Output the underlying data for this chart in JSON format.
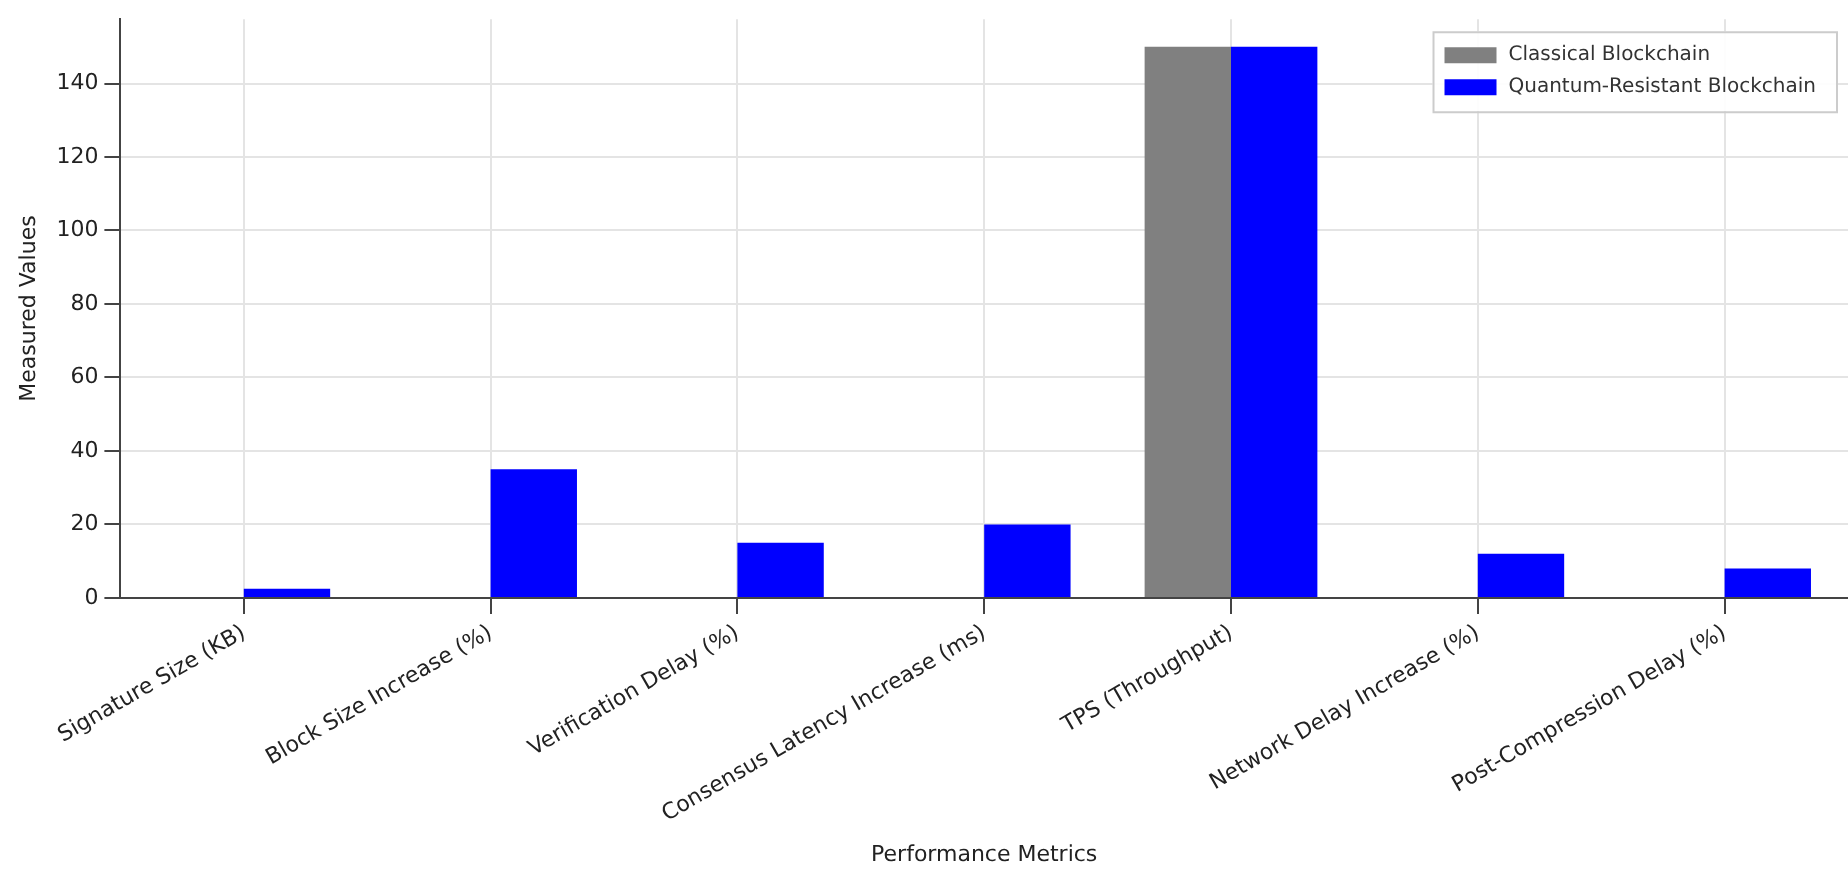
{
  "chart_data": {
    "type": "bar",
    "xlabel": "Performance Metrics",
    "ylabel": "Measured Values",
    "categories": [
      "Signature Size (KB)",
      "Block Size Increase (%)",
      "Verification Delay (%)",
      "Consensus Latency Increase (ms)",
      "TPS (Throughput)",
      "Network Delay Increase (%)",
      "Post-Compression Delay (%)"
    ],
    "series": [
      {
        "name": "Classical Blockchain",
        "color": "#808080",
        "values": [
          0,
          0,
          0,
          0,
          150,
          0,
          0
        ]
      },
      {
        "name": "Quantum-Resistant Blockchain",
        "color": "#0000ff",
        "values": [
          2.5,
          35,
          15,
          20,
          150,
          12,
          8
        ]
      }
    ],
    "ylim": [
      0,
      157.5
    ],
    "yticks": [
      0,
      20,
      40,
      60,
      80,
      100,
      120,
      140
    ],
    "grid": true,
    "legend": "top right"
  }
}
